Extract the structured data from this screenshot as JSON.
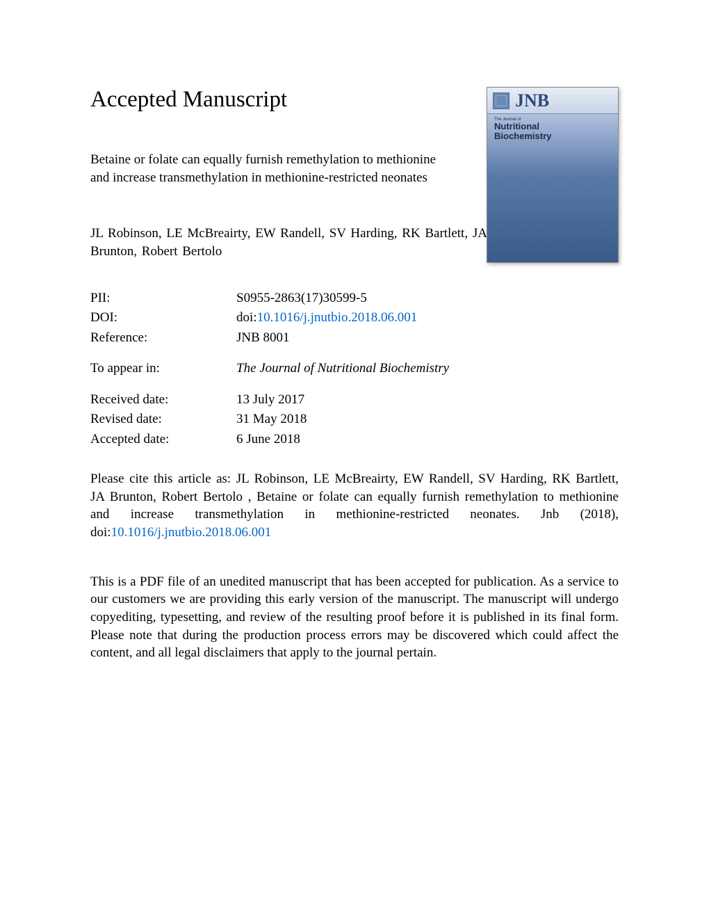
{
  "heading": "Accepted Manuscript",
  "article_title": "Betaine or folate can equally furnish remethylation to methionine and increase transmethylation in methionine-restricted neonates",
  "authors": "JL Robinson, LE McBreairty, EW Randell, SV Harding, RK Bartlett, JA Brunton, Robert Bertolo",
  "metadata": {
    "pii": {
      "label": "PII:",
      "value": "S0955-2863(17)30599-5"
    },
    "doi": {
      "label": "DOI:",
      "prefix": "doi:",
      "link": "10.1016/j.jnutbio.2018.06.001"
    },
    "reference": {
      "label": "Reference:",
      "value": "JNB 8001"
    },
    "to_appear_in": {
      "label": "To appear in:",
      "value": "The Journal of Nutritional Biochemistry"
    },
    "received_date": {
      "label": "Received date:",
      "value": "13 July 2017"
    },
    "revised_date": {
      "label": "Revised date:",
      "value": "31 May 2018"
    },
    "accepted_date": {
      "label": "Accepted date:",
      "value": "6 June 2018"
    }
  },
  "citation": {
    "text_before_doi": "Please cite this article as: JL Robinson, LE McBreairty, EW Randell, SV Harding, RK Bartlett, JA Brunton, Robert Bertolo , Betaine or folate can equally furnish remethylation to methionine and increase transmethylation in methionine-restricted neonates. Jnb (2018), doi:",
    "doi_link": "10.1016/j.jnutbio.2018.06.001"
  },
  "disclaimer": "This is a PDF file of an unedited manuscript that has been accepted for publication. As a service to our customers we are providing this early version of the manuscript. The manuscript will undergo copyediting, typesetting, and review of the resulting proof before it is published in its final form. Please note that during the production process errors may be discovered which could affect the content, and all legal disclaimers that apply to the journal pertain.",
  "journal_cover": {
    "abbrev": "JNB",
    "small_text": "The Journal of",
    "line1": "Nutritional",
    "line2": "Biochemistry"
  },
  "colors": {
    "link_color": "#0066cc",
    "text_color": "#000000",
    "background_color": "#ffffff"
  }
}
